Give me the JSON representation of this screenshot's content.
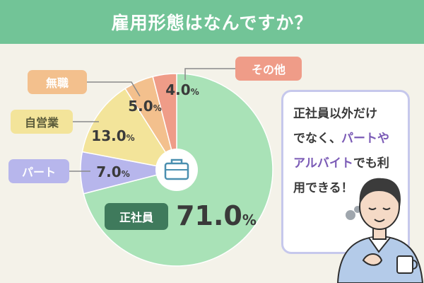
{
  "title": "雇用形態はなんですか？",
  "colors": {
    "title_bg": "#72c497",
    "background": "#f4f2e9",
    "正社員": "#a9e2b7",
    "パート": "#b7b6ec",
    "自営業": "#f3e49a",
    "無職": "#f3c08d",
    "その他": "#ef9c88"
  },
  "chart_data": {
    "type": "pie",
    "title": "雇用形態はなんですか？",
    "unit": "%",
    "slices": [
      {
        "label": "正社員",
        "value": 71.0,
        "value_text": "71.0"
      },
      {
        "label": "パート",
        "value": 7.0,
        "value_text": "7.0"
      },
      {
        "label": "自営業",
        "value": 13.0,
        "value_text": "13.0"
      },
      {
        "label": "無職",
        "value": 5.0,
        "value_text": "5.0"
      },
      {
        "label": "その他",
        "value": 4.0,
        "value_text": "4.0"
      }
    ]
  },
  "center_icon": "briefcase-icon",
  "bubble": {
    "line1": "正社員以外だけ",
    "line2a": "でなく、",
    "line2b": "パートや",
    "line3a": "アルバイト",
    "line3b": "でも利",
    "line4": "用できる！"
  },
  "illustration": "person-holding-cup-icon"
}
